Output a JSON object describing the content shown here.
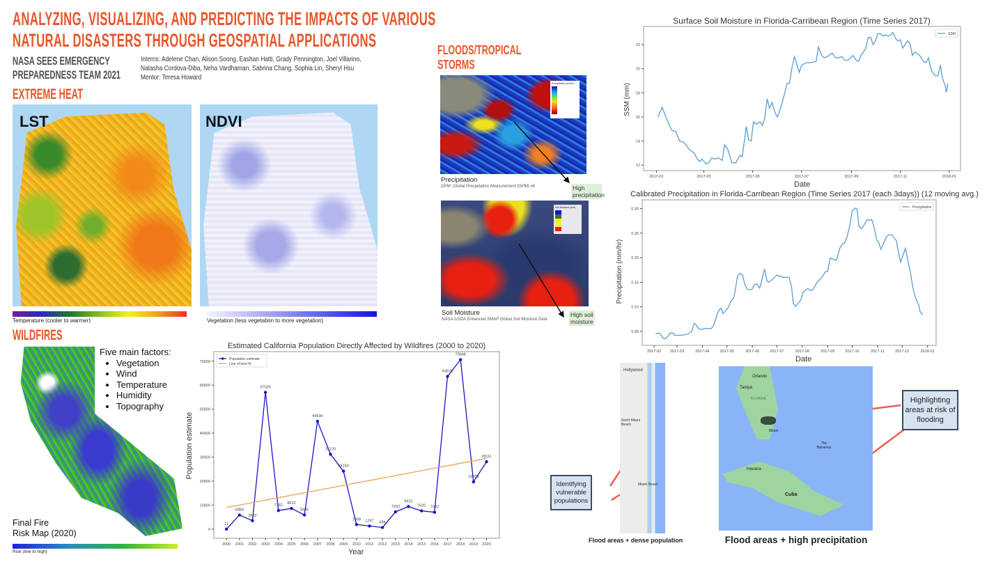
{
  "header": {
    "title_line1": "ANALYZING, VISUALIZING, AND PREDICTING THE IMPACTS OF VARIOUS",
    "title_line2": "NATURAL DISASTERS THROUGH GEOSPATIAL APPLICATIONS",
    "team_line1": "NASA SEES EMERGENCY",
    "team_line2": "PREPAREDNESS TEAM 2021",
    "interns_line1": "Interns: Adelene Chan, Alison Soong, Eashan Hatti, Grady Pennington, Joel Villarino,",
    "interns_line2": "Natasha Cordova-Diba, Neha Vardhaman, Sabrina Chang, Sophia Lin, Sheryl Hsu",
    "mentor": "Mentor: Teresa Howard"
  },
  "extreme_heat": {
    "heading": "EXTREME HEAT",
    "lst_label": "LST",
    "ndvi_label": "NDVI",
    "lst_legend": "Temperature (cooler to warmer)",
    "ndvi_legend": "Vegetation (less vegetation to more vegetation)"
  },
  "wildfires": {
    "heading": "WILDFIRES",
    "factors_title": "Five main factors:",
    "factors": [
      "Vegetation",
      "Wind",
      "Temperature",
      "Humidity",
      "Topography"
    ],
    "map_caption_line1": "Final Fire",
    "map_caption_line2": "Risk Map (2020)",
    "risk_legend": "Risk (low to high)"
  },
  "floods": {
    "heading_line1": "FLOODS/TROPICAL",
    "heading_line2": "STORMS",
    "precip_caption": "Precipitation",
    "precip_source": "GPM: Global Precipitation Measurement (GPM) v6",
    "precip_tag": "High precipitation",
    "soil_caption": "Soil Moisture",
    "soil_source": "NASA-USDA Enhanced SMAP Global Soil Moisture Data",
    "soil_tag_line1": "High soil",
    "soil_tag_line2": "moisture",
    "precip_legend_title": "Precipitation (mm/hr)",
    "soil_legend_title": "Soil Moisture (mm)",
    "flood_pop_caption": "Flood areas + dense population",
    "flood_precip_caption": "Flood areas + high precipitation",
    "callout_vulnerable": "Identifying vulnerable populations",
    "callout_risk": "Highlighting areas at risk of flooding",
    "map_labels": {
      "hollywood": "Hollywood",
      "north_miami": "North Miami Beach",
      "miami_beach": "Miami Beach",
      "orlando": "Orlando",
      "tampa": "Tampa",
      "florida": "FLORIDA",
      "miami": "Miami",
      "bahamas": "The Bahamas",
      "havana": "Havana",
      "cuba": "Cuba"
    }
  },
  "chart_data": [
    {
      "id": "wildfire",
      "type": "line",
      "title": "Estimated California Population Directly Affected by Wildfires (2000 to 2020)",
      "xlabel": "Year",
      "ylabel": "Population estimate",
      "xlim": [
        1999.03,
        2020.99
      ],
      "ylim": [
        -3800,
        74000
      ],
      "xticks": [
        2000,
        2001,
        2002,
        2003,
        2004,
        2005,
        2006,
        2007,
        2008,
        2009,
        2010,
        2011,
        2012,
        2013,
        2014,
        2015,
        2016,
        2017,
        2018,
        2019,
        2020
      ],
      "yticks": [
        0,
        10000,
        20000,
        30000,
        40000,
        50000,
        60000,
        70000
      ],
      "legend": [
        "Population estimate",
        "Line of best fit"
      ],
      "legend_position": "top-left",
      "series": [
        {
          "name": "Population estimate",
          "color": "#1515c8",
          "x": [
            2000,
            2001,
            2002,
            2003,
            2004,
            2005,
            2006,
            2007,
            2008,
            2009,
            2010,
            2011,
            2012,
            2013,
            2014,
            2015,
            2016,
            2017,
            2018,
            2019,
            2020
          ],
          "y": [
            11,
            5884,
            3502,
            57035,
            7762,
            8615,
            5895,
            44939,
            31220,
            24150,
            1908,
            1297,
            684,
            7203,
            9423,
            7620,
            7032,
            63679,
            70648,
            19688,
            28111
          ]
        },
        {
          "name": "Line of best fit",
          "color": "#f0a050",
          "x": [
            2000,
            2020
          ],
          "y": [
            9000,
            29500
          ]
        }
      ]
    },
    {
      "id": "ssm",
      "type": "line",
      "title": "Surface Soil Moisture in Florida-Carribean Region (Time Series 2017)",
      "xlabel": "Date",
      "ylabel": "SSM (mm)",
      "x_units": "day of 2017",
      "xlim": [
        -15,
        380
      ],
      "ylim": [
        11.55,
        23.5
      ],
      "xticks": [
        {
          "value": 1,
          "label": "2017-01"
        },
        {
          "value": 60,
          "label": "2017-03"
        },
        {
          "value": 121,
          "label": "2017-05"
        },
        {
          "value": 182,
          "label": "2017-07"
        },
        {
          "value": 244,
          "label": "2017-09"
        },
        {
          "value": 305,
          "label": "2017-11"
        },
        {
          "value": 366,
          "label": "2018-01"
        }
      ],
      "yticks": [
        12,
        14,
        16,
        18,
        20,
        22
      ],
      "legend": [
        "SSM"
      ],
      "legend_position": "top-right",
      "series": [
        {
          "name": "SSM",
          "color": "#5b9bd0",
          "x": [
            3,
            8,
            14,
            20,
            25,
            30,
            35,
            42,
            48,
            52,
            55,
            58,
            63,
            66,
            70,
            74,
            78,
            83,
            86,
            90,
            95,
            100,
            105,
            108,
            113,
            116,
            119,
            122,
            126,
            130,
            133,
            136,
            139,
            142,
            145,
            149,
            152,
            157,
            161,
            164,
            167,
            170,
            173,
            179,
            182,
            188,
            194,
            200,
            203,
            207,
            210,
            214,
            220,
            224,
            228,
            232,
            236,
            240,
            246,
            250,
            253,
            256,
            262,
            265,
            268,
            271,
            274,
            277,
            280,
            284,
            287,
            290,
            293,
            296,
            299,
            302,
            305,
            308,
            314,
            317,
            320,
            323,
            329,
            334,
            337,
            340,
            343,
            346,
            349,
            352,
            355,
            357,
            359,
            361,
            362,
            363,
            364
          ],
          "y": [
            16.0,
            16.8,
            15.8,
            14.9,
            14.8,
            14.0,
            13.9,
            13.3,
            13.0,
            12.5,
            12.3,
            12.5,
            12.1,
            12.2,
            12.6,
            12.5,
            12.6,
            12.4,
            13.7,
            13.3,
            12.2,
            12.2,
            12.8,
            12.7,
            15.2,
            14.1,
            14.0,
            15.6,
            15.4,
            15.6,
            15.3,
            15.9,
            17.5,
            16.7,
            17.2,
            16.3,
            16.0,
            17.0,
            18.0,
            18.8,
            18.8,
            20.1,
            21.0,
            19.7,
            20.3,
            20.5,
            20.5,
            20.6,
            21.8,
            21.1,
            20.9,
            21.0,
            21.3,
            20.9,
            20.9,
            21.0,
            20.7,
            20.7,
            21.1,
            20.7,
            20.6,
            21.1,
            21.7,
            22.6,
            22.6,
            22.0,
            22.3,
            22.9,
            22.9,
            22.7,
            22.8,
            22.7,
            22.8,
            23.0,
            22.5,
            22.3,
            22.4,
            21.7,
            22.3,
            22.1,
            21.1,
            21.4,
            21.1,
            20.6,
            20.5,
            20.9,
            20.0,
            19.6,
            19.4,
            19.4,
            20.3,
            19.4,
            18.9,
            18.6,
            18.1,
            18.2,
            18.8
          ]
        }
      ]
    },
    {
      "id": "precip",
      "type": "line",
      "title": "Calibrated Precipitation in Florida-Carribean Region (Time Series 2017 (each 3days)) (12 moving avg.)",
      "xlabel": "Date",
      "ylabel": "Precipitation (mm/hr)",
      "x_units": "day of 2017",
      "xlim": [
        17.5,
        376.5
      ],
      "ylim": [
        0.0215,
        0.3178
      ],
      "xticks": [
        {
          "value": 32,
          "label": "2017-02"
        },
        {
          "value": 60,
          "label": "2017-03"
        },
        {
          "value": 91,
          "label": "2017-04"
        },
        {
          "value": 121,
          "label": "2017-05"
        },
        {
          "value": 152,
          "label": "2017-06"
        },
        {
          "value": 182,
          "label": "2017-07"
        },
        {
          "value": 213,
          "label": "2017-08"
        },
        {
          "value": 244,
          "label": "2017-09"
        },
        {
          "value": 274,
          "label": "2017-10"
        },
        {
          "value": 305,
          "label": "2017-11"
        },
        {
          "value": 335,
          "label": "2017-12"
        },
        {
          "value": 366,
          "label": "2018-01"
        }
      ],
      "yticks": [
        0.05,
        0.1,
        0.15,
        0.2,
        0.25,
        0.3
      ],
      "legend": [
        "Precipitation"
      ],
      "legend_position": "top-right",
      "series": [
        {
          "name": "Precipitation",
          "color": "#5b9bd0",
          "x": [
            34,
            39,
            43,
            46,
            49,
            52,
            56,
            57,
            67,
            70,
            73,
            78,
            81,
            83,
            87,
            90,
            95,
            102,
            105,
            109,
            112,
            114,
            116,
            120,
            123,
            126,
            129,
            131,
            134,
            137,
            140,
            143,
            146,
            151,
            152,
            155,
            158,
            161,
            167,
            170,
            172,
            176,
            179,
            182,
            185,
            187,
            189,
            197,
            200,
            202,
            205,
            208,
            211,
            214,
            217,
            220,
            223,
            226,
            230,
            234,
            238,
            241,
            244,
            247,
            250,
            253,
            255,
            259,
            262,
            265,
            268,
            271,
            274,
            278,
            280,
            282,
            285,
            288,
            292,
            298,
            301,
            304,
            306,
            309,
            312,
            316,
            319,
            323,
            325,
            328,
            330,
            333,
            336,
            339,
            342,
            345,
            348,
            351,
            355,
            357,
            360
          ],
          "y": [
            0.046,
            0.046,
            0.036,
            0.035,
            0.04,
            0.047,
            0.046,
            0.042,
            0.042,
            0.044,
            0.044,
            0.05,
            0.066,
            0.064,
            0.055,
            0.054,
            0.056,
            0.056,
            0.063,
            0.085,
            0.095,
            0.097,
            0.086,
            0.093,
            0.1,
            0.112,
            0.117,
            0.132,
            0.163,
            0.168,
            0.165,
            0.145,
            0.135,
            0.135,
            0.137,
            0.146,
            0.146,
            0.138,
            0.177,
            0.152,
            0.15,
            0.155,
            0.16,
            0.165,
            0.162,
            0.163,
            0.16,
            0.16,
            0.14,
            0.107,
            0.101,
            0.108,
            0.113,
            0.13,
            0.134,
            0.137,
            0.133,
            0.135,
            0.147,
            0.155,
            0.162,
            0.171,
            0.172,
            0.199,
            0.198,
            0.195,
            0.196,
            0.22,
            0.228,
            0.23,
            0.245,
            0.265,
            0.295,
            0.301,
            0.299,
            0.265,
            0.259,
            0.265,
            0.277,
            0.277,
            0.26,
            0.235,
            0.233,
            0.217,
            0.228,
            0.243,
            0.247,
            0.246,
            0.24,
            0.235,
            0.215,
            0.191,
            0.205,
            0.219,
            0.195,
            0.17,
            0.14,
            0.12,
            0.105,
            0.09,
            0.084
          ]
        }
      ]
    }
  ]
}
